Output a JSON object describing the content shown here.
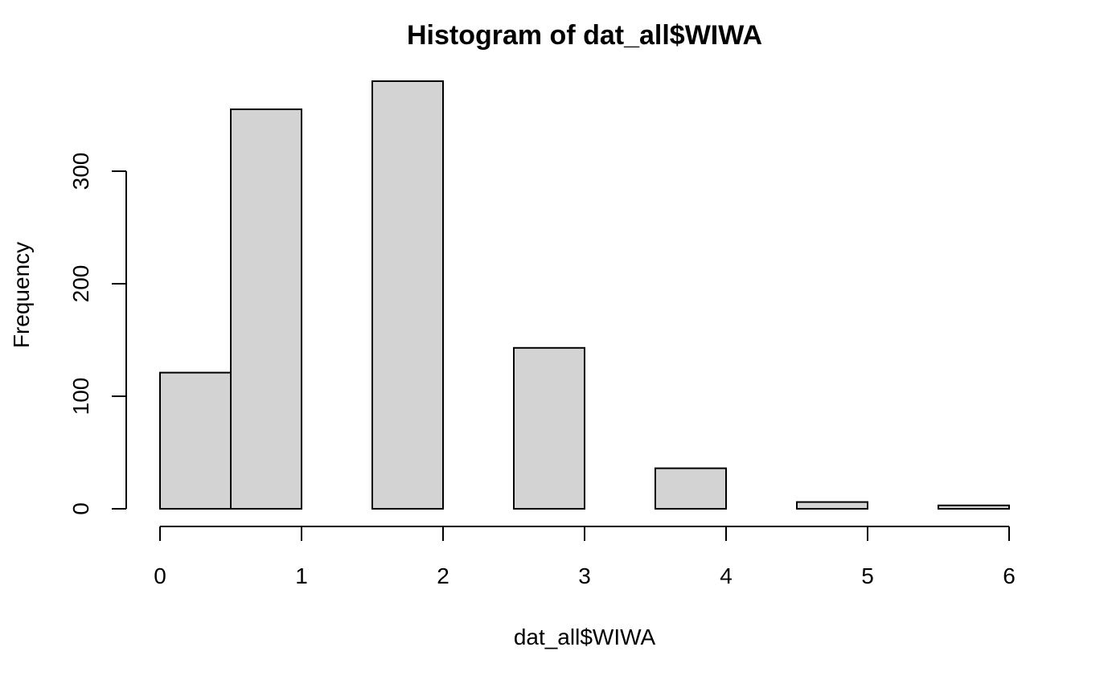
{
  "chart_data": {
    "type": "bar",
    "title": "Histogram of dat_all$WIWA",
    "xlabel": "dat_all$WIWA",
    "ylabel": "Frequency",
    "bins": [
      {
        "x0": 0.0,
        "x1": 0.5,
        "count": 121
      },
      {
        "x0": 0.5,
        "x1": 1.0,
        "count": 355
      },
      {
        "x0": 1.0,
        "x1": 1.5,
        "count": 0
      },
      {
        "x0": 1.5,
        "x1": 2.0,
        "count": 380
      },
      {
        "x0": 2.0,
        "x1": 2.5,
        "count": 0
      },
      {
        "x0": 2.5,
        "x1": 3.0,
        "count": 143
      },
      {
        "x0": 3.0,
        "x1": 3.5,
        "count": 0
      },
      {
        "x0": 3.5,
        "x1": 4.0,
        "count": 36
      },
      {
        "x0": 4.0,
        "x1": 4.5,
        "count": 0
      },
      {
        "x0": 4.5,
        "x1": 5.0,
        "count": 6
      },
      {
        "x0": 5.0,
        "x1": 5.5,
        "count": 0
      },
      {
        "x0": 5.5,
        "x1": 6.0,
        "count": 3
      }
    ],
    "xlim": [
      0,
      6
    ],
    "ylim": [
      0,
      380
    ],
    "x_ticks": [
      "0",
      "1",
      "2",
      "3",
      "4",
      "5",
      "6"
    ],
    "y_ticks": [
      "0",
      "100",
      "200",
      "300"
    ],
    "bar_fill": "#d3d3d3",
    "bar_stroke": "#000000",
    "grid": false
  }
}
